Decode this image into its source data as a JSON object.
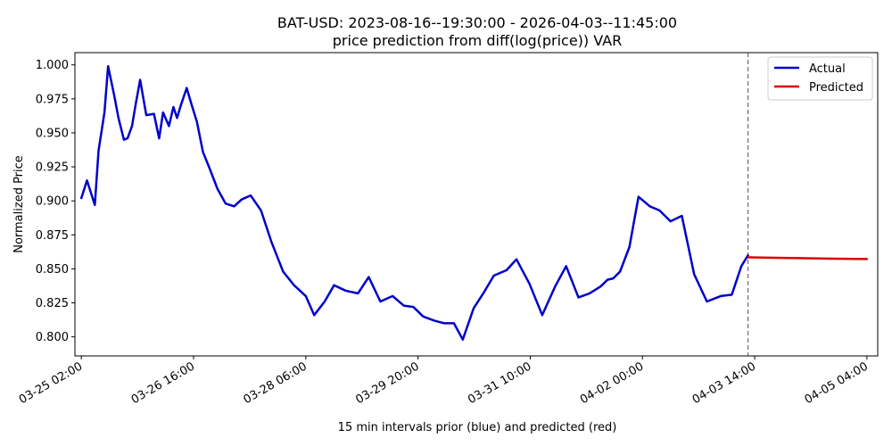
{
  "chart_data": {
    "type": "line",
    "title": "BAT-USD: 2023-08-16--19:30:00 - 2026-04-03--11:45:00",
    "subtitle": "price prediction from diff(log(price)) VAR",
    "xlabel": "15 min intervals prior (blue) and predicted (red)",
    "ylabel": "Normalized Price",
    "xlim": [
      "03-24 23:50",
      "04-05 07:40"
    ],
    "ylim": [
      0.786,
      1.009
    ],
    "x_ticks": [
      "03-25 02:00",
      "03-26 16:00",
      "03-28 06:00",
      "03-29 20:00",
      "03-31 10:00",
      "04-02 00:00",
      "04-03 14:00",
      "04-05 04:00"
    ],
    "y_ticks": [
      "0.800",
      "0.825",
      "0.850",
      "0.875",
      "0.900",
      "0.925",
      "0.950",
      "0.975",
      "1.000"
    ],
    "grid": false,
    "legend_position": "top-right",
    "forecast_start": "04-03 11:45",
    "series": [
      {
        "name": "Actual",
        "color": "#0000cc",
        "x": [
          "03-25 02:00",
          "03-25 03:55",
          "03-25 06:35",
          "03-25 07:50",
          "03-25 09:50",
          "03-25 11:05",
          "03-25 13:05",
          "03-25 14:35",
          "03-25 16:25",
          "03-25 17:40",
          "03-25 19:10",
          "03-25 20:25",
          "03-25 21:55",
          "03-26 00:00",
          "03-26 02:35",
          "03-26 04:20",
          "03-26 05:40",
          "03-26 07:40",
          "03-26 09:10",
          "03-26 10:25",
          "03-26 11:40",
          "03-26 13:40",
          "03-26 15:10",
          "03-26 17:10",
          "03-26 19:10",
          "03-26 21:25",
          "03-27 00:05",
          "03-27 02:50",
          "03-27 05:45",
          "03-27 08:15",
          "03-27 11:20",
          "03-27 14:50",
          "03-27 18:20",
          "03-27 22:20",
          "03-28 02:00",
          "03-28 06:00",
          "03-28 08:50",
          "03-28 12:25",
          "03-28 15:35",
          "03-28 19:25",
          "03-28 23:40",
          "03-29 03:20",
          "03-29 07:15",
          "03-29 11:25",
          "03-29 15:10",
          "03-29 18:25",
          "03-29 21:45",
          "03-30 01:30",
          "03-30 04:55",
          "03-30 08:10",
          "03-30 11:10",
          "03-30 14:50",
          "03-30 18:25",
          "03-30 21:40",
          "03-31 02:00",
          "03-31 05:20",
          "03-31 09:45",
          "03-31 14:05",
          "03-31 18:25",
          "03-31 22:10",
          "04-01 02:20",
          "04-01 06:05",
          "04-01 09:50",
          "04-01 12:10",
          "04-01 14:05",
          "04-01 16:25",
          "04-01 19:35",
          "04-01 22:40",
          "04-02 02:30",
          "04-02 05:45",
          "04-02 09:30",
          "04-02 13:20",
          "04-02 17:30",
          "04-02 21:50",
          "04-03 02:30",
          "04-03 06:15",
          "04-03 09:30",
          "04-03 11:45"
        ],
        "y": [
          0.902,
          0.915,
          0.897,
          0.937,
          0.965,
          0.999,
          0.978,
          0.961,
          0.945,
          0.946,
          0.955,
          0.971,
          0.989,
          0.963,
          0.964,
          0.946,
          0.965,
          0.955,
          0.969,
          0.961,
          0.97,
          0.983,
          0.972,
          0.958,
          0.936,
          0.924,
          0.909,
          0.898,
          0.896,
          0.901,
          0.904,
          0.893,
          0.87,
          0.848,
          0.838,
          0.83,
          0.816,
          0.826,
          0.838,
          0.834,
          0.832,
          0.844,
          0.826,
          0.83,
          0.823,
          0.822,
          0.815,
          0.812,
          0.81,
          0.81,
          0.798,
          0.821,
          0.833,
          0.845,
          0.849,
          0.857,
          0.839,
          0.816,
          0.837,
          0.852,
          0.829,
          0.832,
          0.837,
          0.842,
          0.843,
          0.848,
          0.866,
          0.903,
          0.896,
          0.893,
          0.885,
          0.889,
          0.846,
          0.826,
          0.83,
          0.831,
          0.852,
          0.86
        ]
      },
      {
        "name": "Predicted",
        "color": "#dd0000",
        "x": [
          "04-03 11:45",
          "04-04 02:00",
          "04-04 16:00",
          "04-05 04:00"
        ],
        "y": [
          0.8585,
          0.858,
          0.8575,
          0.8572
        ]
      }
    ]
  }
}
